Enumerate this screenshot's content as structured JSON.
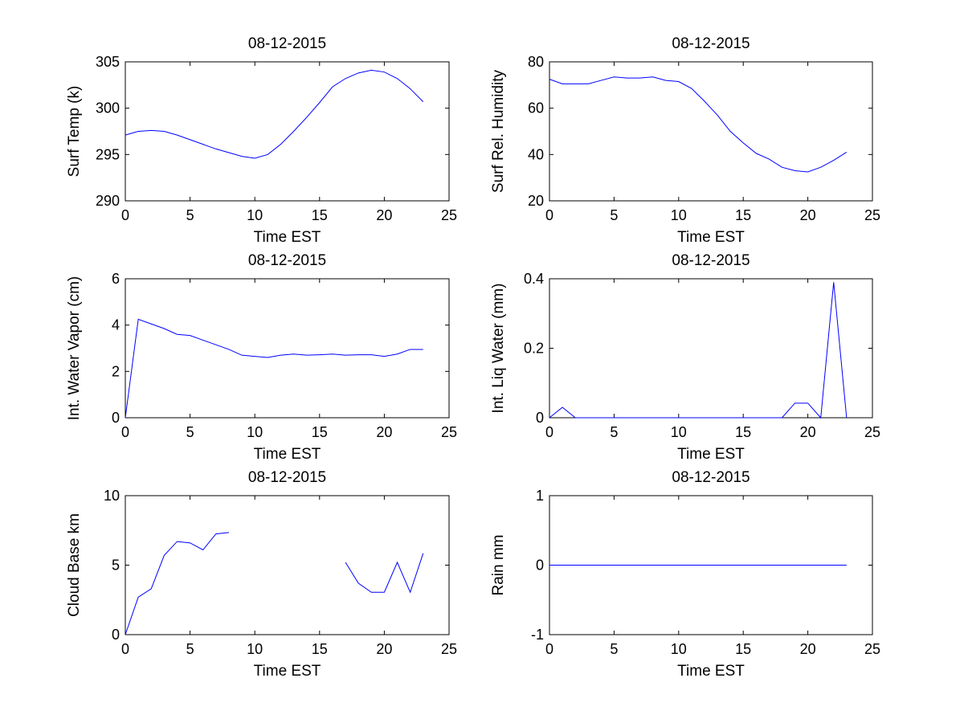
{
  "colors": {
    "line": "#0000ff",
    "axes": "#000000",
    "background": "#ffffff"
  },
  "chart_data": [
    {
      "type": "line",
      "title": "08-12-2015",
      "xlabel": "Time EST",
      "ylabel": "Surf Temp (k)",
      "xlim": [
        0,
        25
      ],
      "ylim": [
        290,
        305
      ],
      "xticks": [
        "0",
        "5",
        "10",
        "15",
        "20",
        "25"
      ],
      "yticks": [
        "290",
        "295",
        "300",
        "305"
      ],
      "grid": false,
      "series": [
        {
          "x": [
            0,
            1,
            2,
            3,
            4,
            5,
            6,
            7,
            8,
            9,
            10,
            11,
            12,
            13,
            14,
            15,
            16,
            17,
            18,
            19,
            20,
            21,
            22,
            23
          ],
          "y": [
            297.1,
            297.5,
            297.6,
            297.5,
            297.1,
            296.6,
            296.1,
            295.6,
            295.2,
            294.8,
            294.6,
            295.0,
            296.1,
            297.5,
            299.0,
            300.6,
            302.3,
            303.2,
            303.8,
            304.1,
            303.9,
            303.2,
            302.1,
            300.7
          ]
        }
      ]
    },
    {
      "type": "line",
      "title": "08-12-2015",
      "xlabel": "Time EST",
      "ylabel": "Surf Rel. Humidity",
      "xlim": [
        0,
        25
      ],
      "ylim": [
        20,
        80
      ],
      "xticks": [
        "0",
        "5",
        "10",
        "15",
        "20",
        "25"
      ],
      "yticks": [
        "20",
        "40",
        "60",
        "80"
      ],
      "grid": false,
      "series": [
        {
          "x": [
            0,
            1,
            2,
            3,
            4,
            5,
            6,
            7,
            8,
            9,
            10,
            11,
            12,
            13,
            14,
            15,
            16,
            17,
            18,
            19,
            20,
            21,
            22,
            23
          ],
          "y": [
            72.5,
            70.5,
            70.5,
            70.5,
            72.0,
            73.5,
            73.0,
            73.0,
            73.5,
            72.0,
            71.5,
            68.5,
            63.0,
            57.0,
            50.0,
            45.0,
            40.5,
            38.0,
            34.5,
            33.0,
            32.5,
            34.5,
            37.5,
            41.0
          ]
        }
      ]
    },
    {
      "type": "line",
      "title": "08-12-2015",
      "xlabel": "Time EST",
      "ylabel": "Int. Water Vapor (cm)",
      "xlim": [
        0,
        25
      ],
      "ylim": [
        0,
        6
      ],
      "xticks": [
        "0",
        "5",
        "10",
        "15",
        "20",
        "25"
      ],
      "yticks": [
        "0",
        "2",
        "4",
        "6"
      ],
      "grid": false,
      "series": [
        {
          "x": [
            0,
            1,
            2,
            3,
            4,
            5,
            6,
            7,
            8,
            9,
            10,
            11,
            12,
            13,
            14,
            15,
            16,
            17,
            18,
            19,
            20,
            21,
            22,
            23
          ],
          "y": [
            0.0,
            4.25,
            4.05,
            3.85,
            3.6,
            3.55,
            3.35,
            3.15,
            2.95,
            2.7,
            2.65,
            2.6,
            2.7,
            2.75,
            2.7,
            2.72,
            2.75,
            2.7,
            2.72,
            2.72,
            2.65,
            2.75,
            2.95,
            2.95
          ]
        }
      ]
    },
    {
      "type": "line",
      "title": "08-12-2015",
      "xlabel": "Time EST",
      "ylabel": "Int. Liq Water (mm)",
      "xlim": [
        0,
        25
      ],
      "ylim": [
        0,
        0.4
      ],
      "xticks": [
        "0",
        "5",
        "10",
        "15",
        "20",
        "25"
      ],
      "yticks": [
        "0",
        "0.2",
        "0.4"
      ],
      "grid": false,
      "series": [
        {
          "x": [
            0,
            1,
            2,
            3,
            4,
            5,
            6,
            7,
            8,
            9,
            10,
            11,
            12,
            13,
            14,
            15,
            16,
            17,
            18,
            19,
            20,
            21,
            22,
            23
          ],
          "y": [
            0.0,
            0.03,
            0.0,
            0.0,
            0.0,
            0.0,
            0.0,
            0.0,
            0.0,
            0.0,
            0.0,
            0.0,
            0.0,
            0.0,
            0.0,
            0.0,
            0.0,
            0.0,
            0.0,
            0.042,
            0.042,
            0.0,
            0.39,
            0.0
          ]
        }
      ]
    },
    {
      "type": "line",
      "title": "08-12-2015",
      "xlabel": "Time EST",
      "ylabel": "Cloud Base km",
      "xlim": [
        0,
        25
      ],
      "ylim": [
        0,
        10
      ],
      "xticks": [
        "0",
        "5",
        "10",
        "15",
        "20",
        "25"
      ],
      "yticks": [
        "0",
        "5",
        "10"
      ],
      "grid": false,
      "series": [
        {
          "x": [
            0,
            1,
            2,
            3,
            4,
            5,
            6,
            7,
            8,
            9,
            10,
            11,
            12,
            13,
            14,
            15,
            16,
            17,
            18,
            19,
            20,
            21,
            22,
            23
          ],
          "y": [
            0.0,
            2.7,
            3.3,
            5.7,
            6.7,
            6.6,
            6.1,
            7.25,
            7.35,
            null,
            null,
            null,
            null,
            null,
            null,
            null,
            null,
            5.2,
            3.7,
            3.05,
            3.05,
            5.2,
            3.05,
            5.85
          ]
        }
      ]
    },
    {
      "type": "line",
      "title": "08-12-2015",
      "xlabel": "Time EST",
      "ylabel": "Rain mm",
      "xlim": [
        0,
        25
      ],
      "ylim": [
        -1,
        1
      ],
      "xticks": [
        "0",
        "5",
        "10",
        "15",
        "20",
        "25"
      ],
      "yticks": [
        "-1",
        "0",
        "1"
      ],
      "grid": false,
      "series": [
        {
          "x": [
            0,
            1,
            2,
            3,
            4,
            5,
            6,
            7,
            8,
            9,
            10,
            11,
            12,
            13,
            14,
            15,
            16,
            17,
            18,
            19,
            20,
            21,
            22,
            23
          ],
          "y": [
            0,
            0,
            0,
            0,
            0,
            0,
            0,
            0,
            0,
            0,
            0,
            0,
            0,
            0,
            0,
            0,
            0,
            0,
            0,
            0,
            0,
            0,
            0,
            0
          ]
        }
      ]
    }
  ]
}
